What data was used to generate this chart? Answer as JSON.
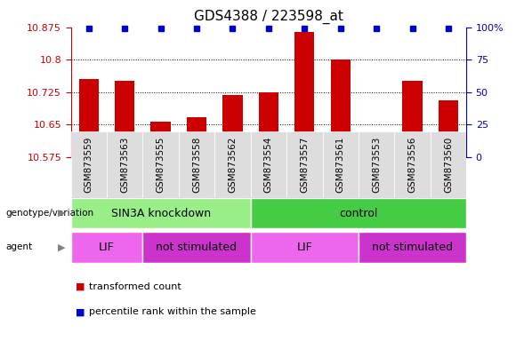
{
  "title": "GDS4388 / 223598_at",
  "samples": [
    "GSM873559",
    "GSM873563",
    "GSM873555",
    "GSM873558",
    "GSM873562",
    "GSM873554",
    "GSM873557",
    "GSM873561",
    "GSM873553",
    "GSM873556",
    "GSM873560"
  ],
  "bar_values": [
    10.755,
    10.752,
    10.657,
    10.666,
    10.718,
    10.725,
    10.865,
    10.8,
    10.59,
    10.752,
    10.706
  ],
  "y_min": 10.575,
  "y_max": 10.875,
  "y_ticks": [
    10.575,
    10.65,
    10.725,
    10.8,
    10.875
  ],
  "y_ticks_right": [
    0,
    25,
    50,
    75,
    100
  ],
  "bar_color": "#cc0000",
  "dot_color": "#0000cc",
  "groups": [
    {
      "label": "SIN3A knockdown",
      "start": 0,
      "end": 5,
      "color": "#99ee88"
    },
    {
      "label": "control",
      "start": 5,
      "end": 11,
      "color": "#44cc44"
    }
  ],
  "agents": [
    {
      "label": "LIF",
      "start": 0,
      "end": 2,
      "color": "#ee66ee"
    },
    {
      "label": "not stimulated",
      "start": 2,
      "end": 5,
      "color": "#cc33cc"
    },
    {
      "label": "LIF",
      "start": 5,
      "end": 8,
      "color": "#ee66ee"
    },
    {
      "label": "not stimulated",
      "start": 8,
      "end": 11,
      "color": "#cc33cc"
    }
  ],
  "legend_items": [
    {
      "label": "transformed count",
      "color": "#cc0000"
    },
    {
      "label": "percentile rank within the sample",
      "color": "#0000cc"
    }
  ]
}
